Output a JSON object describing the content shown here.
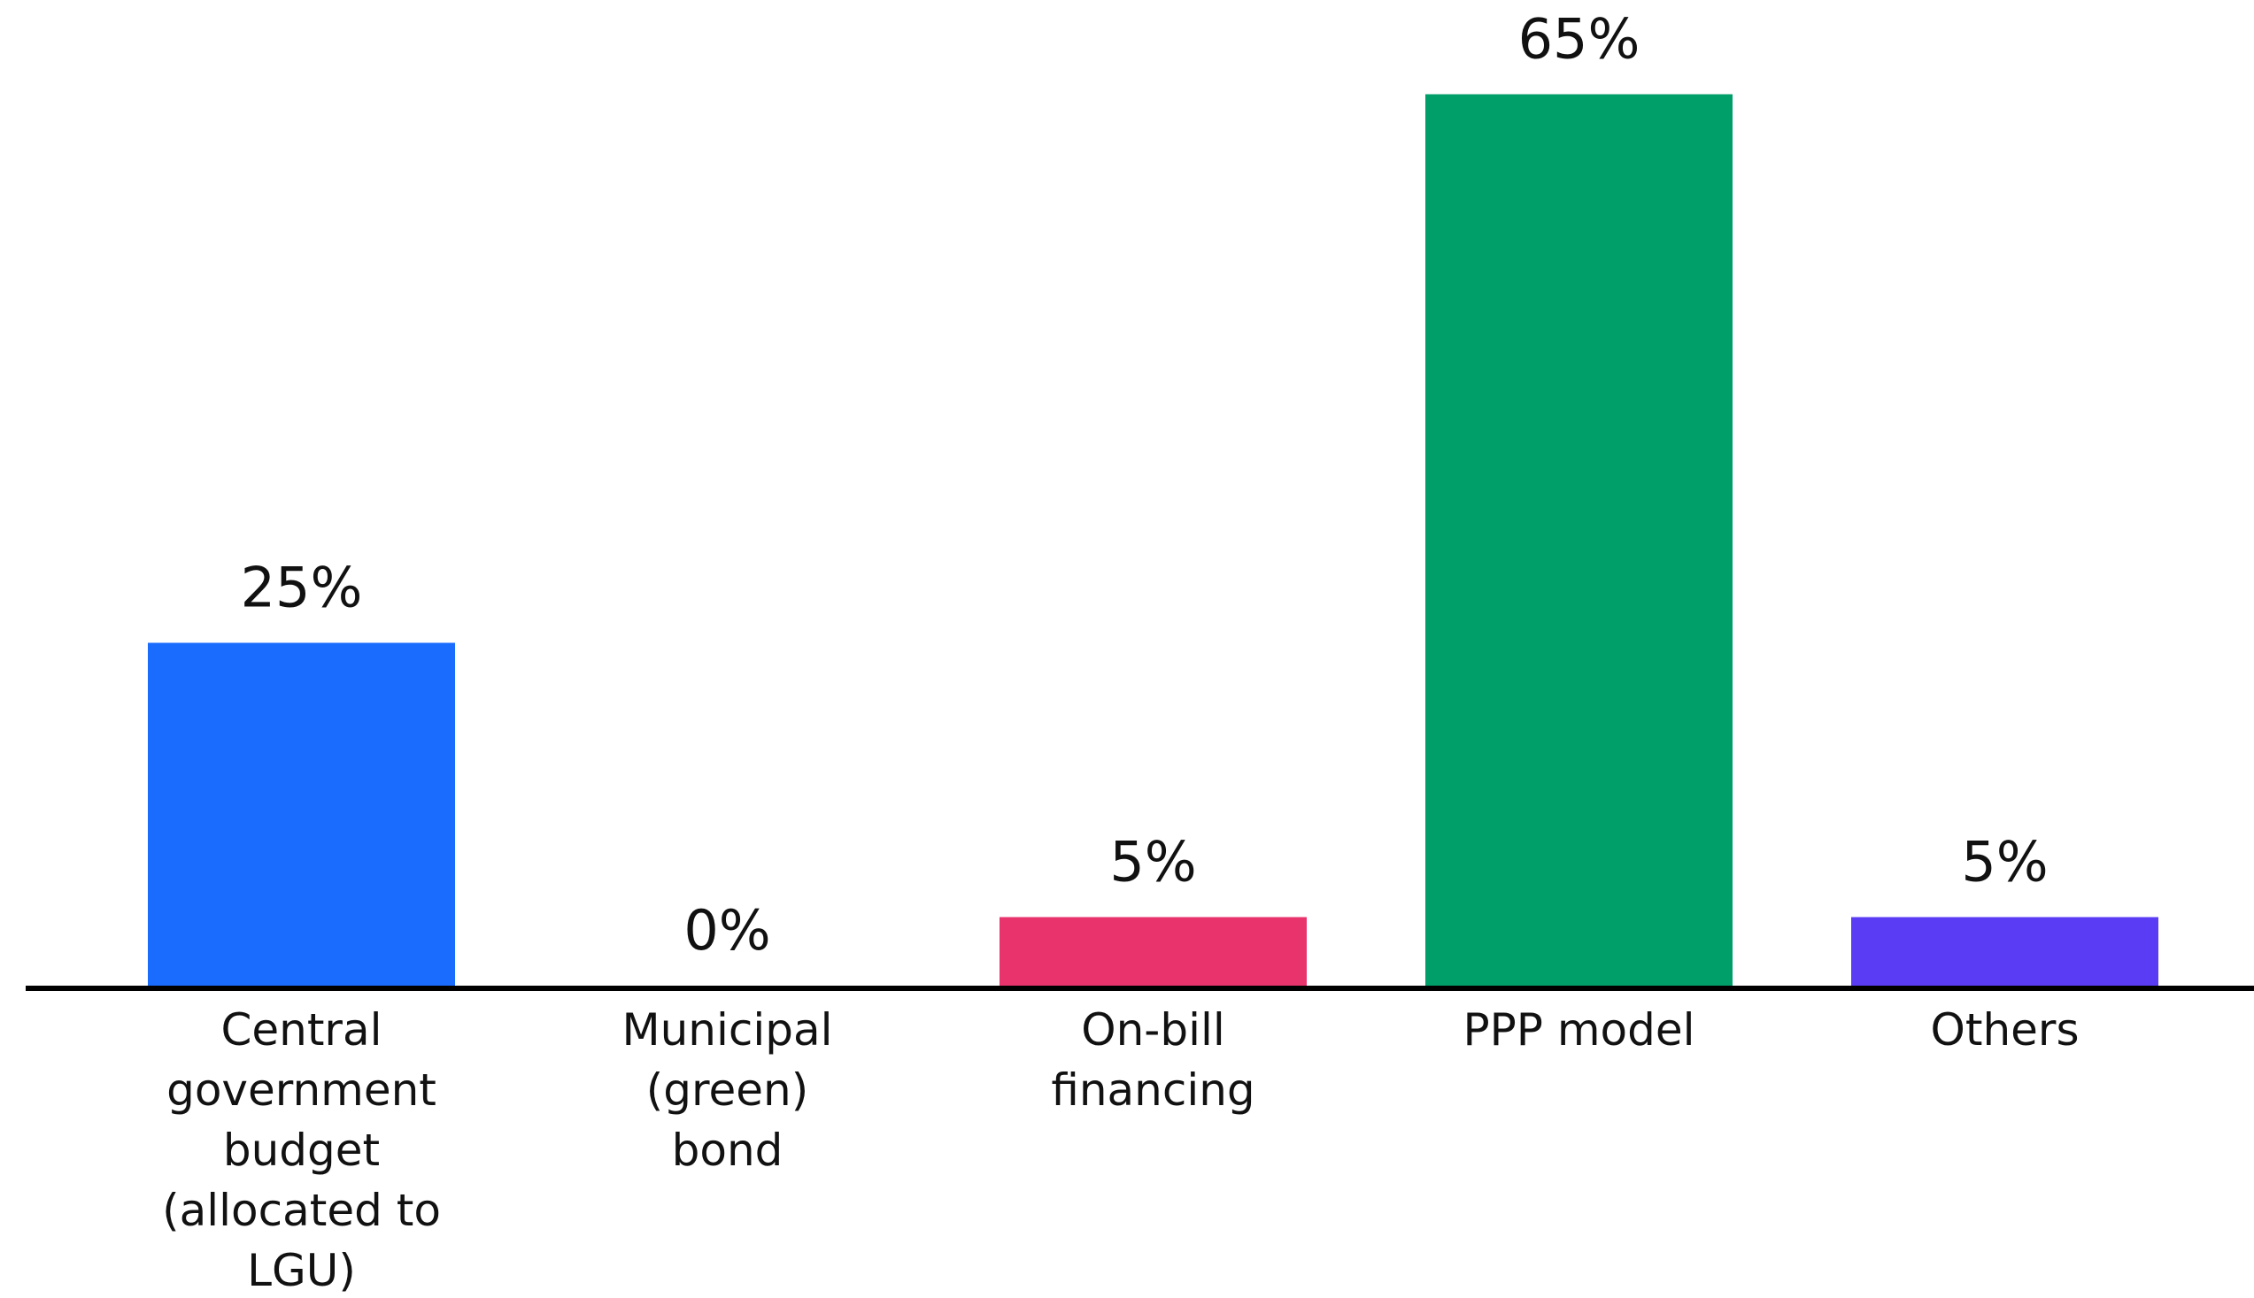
{
  "chart_data": {
    "type": "bar",
    "categories": [
      "Central\ngovernment\nbudget\n(allocated to\nLGU)",
      "Municipal\n(green)\nbond",
      "On-bill\nfinancing",
      "PPP model",
      "Others"
    ],
    "values": [
      25,
      0,
      5,
      65,
      5
    ],
    "value_labels": [
      "25%",
      "0%",
      "5%",
      "65%",
      "5%"
    ],
    "colors": [
      "#1a6cff",
      "#e8336d",
      "#e8336d",
      "#009e68",
      "#5a3cf5"
    ],
    "ylim": [
      0,
      70
    ]
  }
}
